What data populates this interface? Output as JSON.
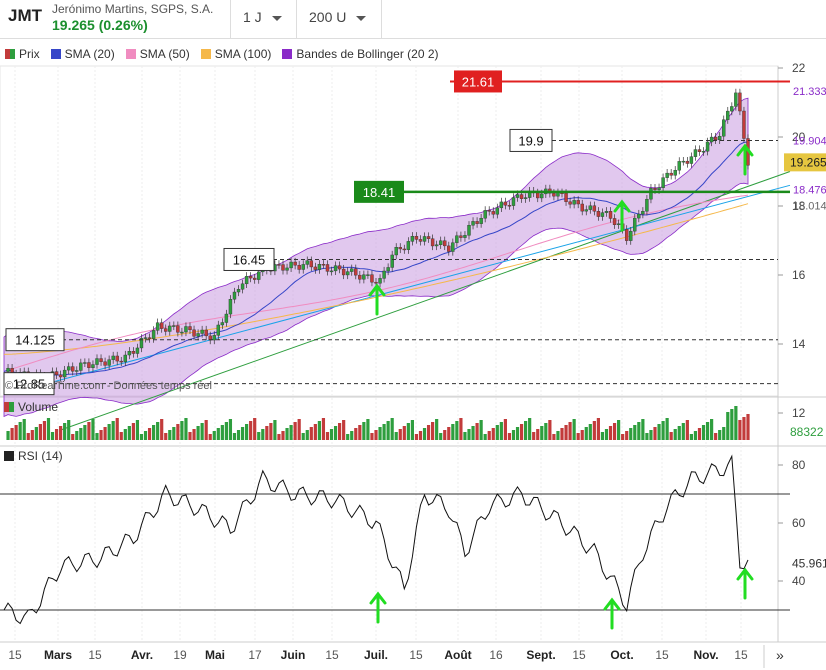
{
  "header": {
    "symbol": "JMT",
    "company": "Jerónimo Martins, SGPS, S.A.",
    "price_change": "19.265 (0.26%)",
    "interval": "1 J",
    "units": "200 U"
  },
  "legend": [
    {
      "label": "Prix",
      "color": "#2e9e3e"
    },
    {
      "label": "SMA (20)",
      "color": "#3646c8"
    },
    {
      "label": "SMA (50)",
      "color": "#f08cc0"
    },
    {
      "label": "SMA (100)",
      "color": "#f5b84a"
    },
    {
      "label": "Bandes de Bollinger (20 2)",
      "color": "#8a2bc8"
    }
  ],
  "price_axis": {
    "ticks": [
      "22",
      "20",
      "18",
      "16",
      "14",
      "12"
    ],
    "labels": [
      {
        "text": "21.333",
        "color": "#8a2bc8",
        "value": 21.333
      },
      {
        "text": "19.904",
        "color": "#8a2bc8",
        "value": 19.904
      },
      {
        "text": "19.265",
        "color": "#d4b62e",
        "value": 19.265
      },
      {
        "text": "18.476",
        "color": "#8a2bc8",
        "value": 18.476
      },
      {
        "text": "18.014",
        "color": "#666666",
        "value": 18.014
      }
    ]
  },
  "levels": [
    {
      "text": "21.61",
      "value": 21.61,
      "style": "red"
    },
    {
      "text": "19.9",
      "value": 19.9,
      "style": "dashed"
    },
    {
      "text": "18.41",
      "value": 18.41,
      "style": "green"
    },
    {
      "text": "16.45",
      "value": 16.45,
      "style": "dashed"
    },
    {
      "text": "14.125",
      "value": 14.125,
      "style": "dashed"
    },
    {
      "text": "12.85",
      "value": 12.85,
      "style": "dashed"
    }
  ],
  "watermark": "© ProRealTime.com - Données temps réel",
  "volume": {
    "title": "Volume",
    "value_label": "88322"
  },
  "rsi": {
    "title": "RSI (14)",
    "ticks": [
      "80",
      "60",
      "40"
    ],
    "value_label": "45.961"
  },
  "x_axis": [
    "15",
    "Mars",
    "15",
    "Avr.",
    "19",
    "Mai",
    "17",
    "Juin",
    "15",
    "Juil.",
    "15",
    "Août",
    "16",
    "Sept.",
    "15",
    "Oct.",
    "15",
    "Nov.",
    "15"
  ],
  "nav": {
    "forward": "»"
  },
  "colors": {
    "up": "#2e9e3e",
    "down": "#c23b3b",
    "band": "#c99be0",
    "annotation_arrow": "#22dd22"
  }
}
